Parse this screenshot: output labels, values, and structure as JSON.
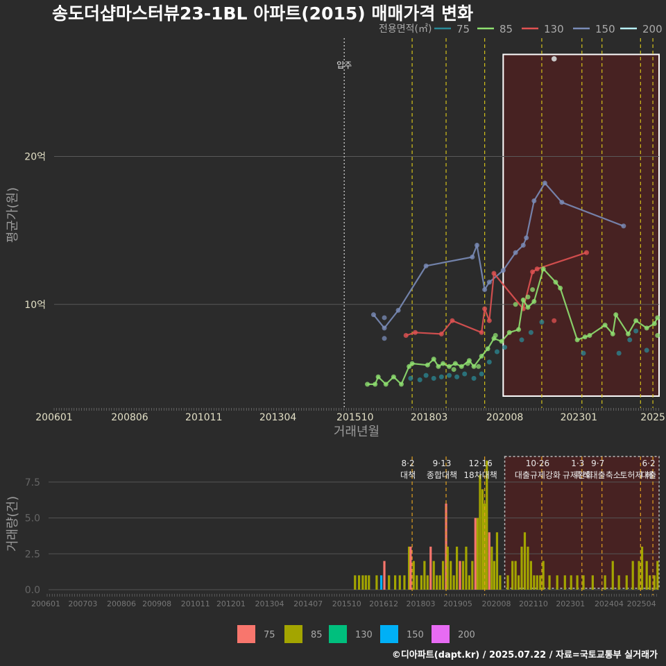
{
  "chart_data": [
    {
      "type": "line",
      "title": "송도더샵마스터뷰23-1BL 아파트(2015) 매매가격 변화",
      "xlabel": "거래년월",
      "ylabel": "평균가(원)",
      "x_tick_labels": [
        "200601",
        "200806",
        "201011",
        "201304",
        "201510",
        "201803",
        "202008",
        "202301",
        "2025"
      ],
      "y_ticks": [
        {
          "value": 10,
          "label": "10억"
        },
        {
          "value": 20,
          "label": "20억"
        }
      ],
      "ylim": [
        3.0,
        28.0
      ],
      "xlim": [
        2006.0,
        2025.6
      ],
      "legend": {
        "title": "전용면적(㎡)",
        "position": "top-right",
        "entries": [
          "75",
          "85",
          "130",
          "150",
          "200"
        ]
      },
      "colors": {
        "75": "#2b8a96",
        "85": "#8fe070",
        "130": "#e05252",
        "150": "#7a8cb8",
        "200": "#b8f0f8"
      },
      "annotations": [
        {
          "x": 2015.4,
          "label": "입주",
          "style": "dotted-white"
        }
      ],
      "policy_lines": [
        2017.6,
        2018.7,
        2019.95,
        2021.8,
        2023.1,
        2023.75,
        2025.0,
        2025.4
      ],
      "highlight_range": [
        2020.55,
        2025.6
      ],
      "series": [
        {
          "name": "150",
          "points": [
            [
              2016.35,
              9.3
            ],
            [
              2016.7,
              8.4
            ],
            [
              2017.15,
              9.6
            ],
            [
              2018.05,
              12.6
            ],
            [
              2019.55,
              13.2
            ],
            [
              2019.7,
              14.0
            ],
            [
              2019.95,
              11.0
            ],
            [
              2020.1,
              11.5
            ],
            [
              2020.55,
              12.3
            ],
            [
              2020.95,
              13.5
            ],
            [
              2021.2,
              14.0
            ],
            [
              2021.3,
              14.5
            ],
            [
              2021.55,
              17.0
            ],
            [
              2021.9,
              18.2
            ],
            [
              2022.45,
              16.9
            ],
            [
              2024.45,
              15.3
            ]
          ],
          "extra_points": [
            [
              2016.7,
              9.1
            ],
            [
              2016.7,
              7.7
            ]
          ]
        },
        {
          "name": "130",
          "points": [
            [
              2017.4,
              7.9
            ],
            [
              2017.7,
              8.1
            ],
            [
              2018.55,
              8.0
            ],
            [
              2018.9,
              8.9
            ],
            [
              2019.85,
              8.1
            ],
            [
              2019.95,
              9.7
            ],
            [
              2020.1,
              8.9
            ],
            [
              2020.25,
              12.1
            ],
            [
              2021.2,
              9.7
            ],
            [
              2021.5,
              12.2
            ],
            [
              2021.65,
              12.4
            ],
            [
              2023.25,
              13.5
            ]
          ],
          "extra_points": [
            [
              2022.2,
              8.9
            ]
          ]
        },
        {
          "name": "85",
          "points": [
            [
              2016.15,
              4.6
            ],
            [
              2016.4,
              4.6
            ],
            [
              2016.5,
              5.1
            ],
            [
              2016.75,
              4.6
            ],
            [
              2017.0,
              5.1
            ],
            [
              2017.25,
              4.6
            ],
            [
              2017.5,
              5.8
            ],
            [
              2017.6,
              6.0
            ],
            [
              2018.1,
              5.9
            ],
            [
              2018.3,
              6.3
            ],
            [
              2018.45,
              5.8
            ],
            [
              2018.6,
              6.0
            ],
            [
              2018.8,
              5.8
            ],
            [
              2019.0,
              6.0
            ],
            [
              2019.2,
              5.8
            ],
            [
              2019.45,
              6.2
            ],
            [
              2019.6,
              5.8
            ],
            [
              2019.85,
              6.5
            ],
            [
              2020.05,
              7.0
            ],
            [
              2020.25,
              7.7
            ],
            [
              2020.5,
              7.5
            ],
            [
              2020.75,
              8.1
            ],
            [
              2021.05,
              8.3
            ],
            [
              2021.2,
              10.3
            ],
            [
              2021.35,
              9.8
            ],
            [
              2021.55,
              10.2
            ],
            [
              2021.85,
              12.4
            ],
            [
              2022.25,
              11.5
            ],
            [
              2022.4,
              11.1
            ],
            [
              2022.95,
              7.6
            ],
            [
              2023.2,
              7.8
            ],
            [
              2023.35,
              7.9
            ],
            [
              2023.85,
              8.6
            ],
            [
              2024.1,
              8.0
            ],
            [
              2024.2,
              9.3
            ],
            [
              2024.6,
              8.0
            ],
            [
              2024.85,
              8.9
            ],
            [
              2025.2,
              8.4
            ],
            [
              2025.45,
              8.7
            ],
            [
              2025.55,
              9.1
            ]
          ],
          "extra_points": [
            [
              2025.55,
              7.9
            ],
            [
              2020.95,
              10.0
            ],
            [
              2021.35,
              10.5
            ],
            [
              2021.5,
              11.0
            ],
            [
              2019.75,
              5.8
            ],
            [
              2019.4,
              6.0
            ],
            [
              2018.95,
              5.6
            ],
            [
              2020.3,
              7.9
            ]
          ]
        },
        {
          "name": "75",
          "points": [],
          "extra_points": [
            [
              2017.55,
              5.0
            ],
            [
              2017.85,
              4.9
            ],
            [
              2018.05,
              5.2
            ],
            [
              2018.3,
              5.0
            ],
            [
              2018.55,
              5.1
            ],
            [
              2018.8,
              5.2
            ],
            [
              2019.05,
              5.1
            ],
            [
              2019.3,
              5.3
            ],
            [
              2019.6,
              5.0
            ],
            [
              2019.85,
              5.3
            ],
            [
              2020.1,
              6.1
            ],
            [
              2020.35,
              6.8
            ],
            [
              2020.6,
              7.1
            ],
            [
              2021.15,
              7.6
            ],
            [
              2021.45,
              8.1
            ],
            [
              2021.8,
              8.8
            ],
            [
              2023.15,
              6.7
            ],
            [
              2024.3,
              6.7
            ],
            [
              2024.65,
              7.6
            ],
            [
              2024.85,
              8.2
            ],
            [
              2025.2,
              6.9
            ]
          ]
        },
        {
          "name": "200",
          "points": [],
          "extra_points": [
            [
              2022.2,
              26.6
            ]
          ]
        }
      ]
    },
    {
      "type": "bar",
      "ylabel": "거래량(건)",
      "x_tick_labels": [
        "200601",
        "200703",
        "200806",
        "200908",
        "201011",
        "201201",
        "201304",
        "201407",
        "201510",
        "201612",
        "201803",
        "201905",
        "202008",
        "202110",
        "202301",
        "202404",
        "202504"
      ],
      "y_ticks": [
        {
          "value": 0,
          "label": "0.0"
        },
        {
          "value": 2.5,
          "label": "2.5"
        },
        {
          "value": 5,
          "label": "5.0"
        },
        {
          "value": 7.5,
          "label": "7.5"
        }
      ],
      "ylim": [
        0,
        9
      ],
      "colors": {
        "75": "#f8766d",
        "85": "#a3a500",
        "130": "#00bf7d",
        "150": "#00b0f6",
        "200": "#e76bf3"
      },
      "legend_entries": [
        "75",
        "85",
        "130",
        "150",
        "200"
      ],
      "highlight_range": [
        2020.6,
        2025.6
      ],
      "policies": [
        {
          "x": 2017.6,
          "date": "8·2",
          "name": "대책"
        },
        {
          "x": 2018.7,
          "date": "9·13",
          "name": "종합대책"
        },
        {
          "x": 2019.95,
          "date": "12·16",
          "name": "18차대책"
        },
        {
          "x": 2021.8,
          "date": "10·26",
          "name": "대출규제강화"
        },
        {
          "x": 2023.1,
          "date": "1·3",
          "name": "규제완화"
        },
        {
          "x": 2023.75,
          "date": "9·7",
          "name": "특례대출축소"
        },
        {
          "x": 2025.0,
          "date": "",
          "name": "토허제 해"
        },
        {
          "x": 2025.4,
          "date": "6·2",
          "name": "대출"
        }
      ],
      "bars": [
        [
          2015.75,
          1,
          "85"
        ],
        [
          2015.88,
          1,
          "85"
        ],
        [
          2016.0,
          1,
          "85"
        ],
        [
          2016.1,
          1,
          "85"
        ],
        [
          2016.2,
          1,
          "85"
        ],
        [
          2016.45,
          1,
          "85"
        ],
        [
          2016.7,
          2,
          "75"
        ],
        [
          2016.6,
          1,
          "150"
        ],
        [
          2016.85,
          1,
          "85"
        ],
        [
          2017.05,
          1,
          "85"
        ],
        [
          2017.2,
          1,
          "85"
        ],
        [
          2017.35,
          1,
          "85"
        ],
        [
          2017.5,
          3,
          "85"
        ],
        [
          2017.55,
          3,
          "75"
        ],
        [
          2017.65,
          2,
          "85"
        ],
        [
          2017.75,
          1,
          "85"
        ],
        [
          2017.9,
          1,
          "85"
        ],
        [
          2018.0,
          2,
          "85"
        ],
        [
          2018.1,
          1,
          "85"
        ],
        [
          2018.2,
          3,
          "75"
        ],
        [
          2018.3,
          2,
          "85"
        ],
        [
          2018.4,
          1,
          "85"
        ],
        [
          2018.5,
          1,
          "85"
        ],
        [
          2018.6,
          2,
          "85"
        ],
        [
          2018.7,
          6,
          "75"
        ],
        [
          2018.75,
          3,
          "85"
        ],
        [
          2018.85,
          2,
          "85"
        ],
        [
          2018.95,
          1,
          "85"
        ],
        [
          2019.05,
          3,
          "85"
        ],
        [
          2019.15,
          2,
          "75"
        ],
        [
          2019.25,
          2,
          "85"
        ],
        [
          2019.35,
          3,
          "85"
        ],
        [
          2019.45,
          1,
          "85"
        ],
        [
          2019.55,
          2,
          "85"
        ],
        [
          2019.65,
          5,
          "75"
        ],
        [
          2019.72,
          5,
          "85"
        ],
        [
          2019.8,
          8,
          "85"
        ],
        [
          2019.88,
          7,
          "85"
        ],
        [
          2019.95,
          6,
          "85"
        ],
        [
          2020.02,
          9,
          "85"
        ],
        [
          2020.1,
          4,
          "75"
        ],
        [
          2020.18,
          3,
          "85"
        ],
        [
          2020.26,
          2,
          "85"
        ],
        [
          2020.35,
          4,
          "85"
        ],
        [
          2020.45,
          1,
          "85"
        ],
        [
          2020.7,
          1,
          "85"
        ],
        [
          2020.85,
          2,
          "85"
        ],
        [
          2020.95,
          2,
          "85"
        ],
        [
          2021.05,
          1,
          "85"
        ],
        [
          2021.15,
          3,
          "85"
        ],
        [
          2021.25,
          4,
          "85"
        ],
        [
          2021.35,
          3,
          "85"
        ],
        [
          2021.45,
          2,
          "85"
        ],
        [
          2021.55,
          1,
          "85"
        ],
        [
          2021.65,
          1,
          "85"
        ],
        [
          2021.75,
          1,
          "85"
        ],
        [
          2021.85,
          2,
          "85"
        ],
        [
          2022.05,
          1,
          "85"
        ],
        [
          2022.3,
          1,
          "85"
        ],
        [
          2022.55,
          1,
          "85"
        ],
        [
          2022.75,
          1,
          "85"
        ],
        [
          2022.95,
          1,
          "85"
        ],
        [
          2023.15,
          1,
          "85"
        ],
        [
          2023.45,
          1,
          "85"
        ],
        [
          2023.85,
          1,
          "85"
        ],
        [
          2024.1,
          2,
          "85"
        ],
        [
          2024.3,
          1,
          "85"
        ],
        [
          2024.55,
          1,
          "85"
        ],
        [
          2024.75,
          2,
          "85"
        ],
        [
          2024.95,
          2,
          "85"
        ],
        [
          2025.05,
          3,
          "85"
        ],
        [
          2025.2,
          2,
          "85"
        ],
        [
          2025.3,
          1,
          "85"
        ],
        [
          2025.45,
          1,
          "85"
        ],
        [
          2025.55,
          2,
          "85"
        ]
      ]
    }
  ],
  "caption": "©디아파트(dapt.kr) / 2025.07.22 / 자료=국토교통부 실거래가"
}
